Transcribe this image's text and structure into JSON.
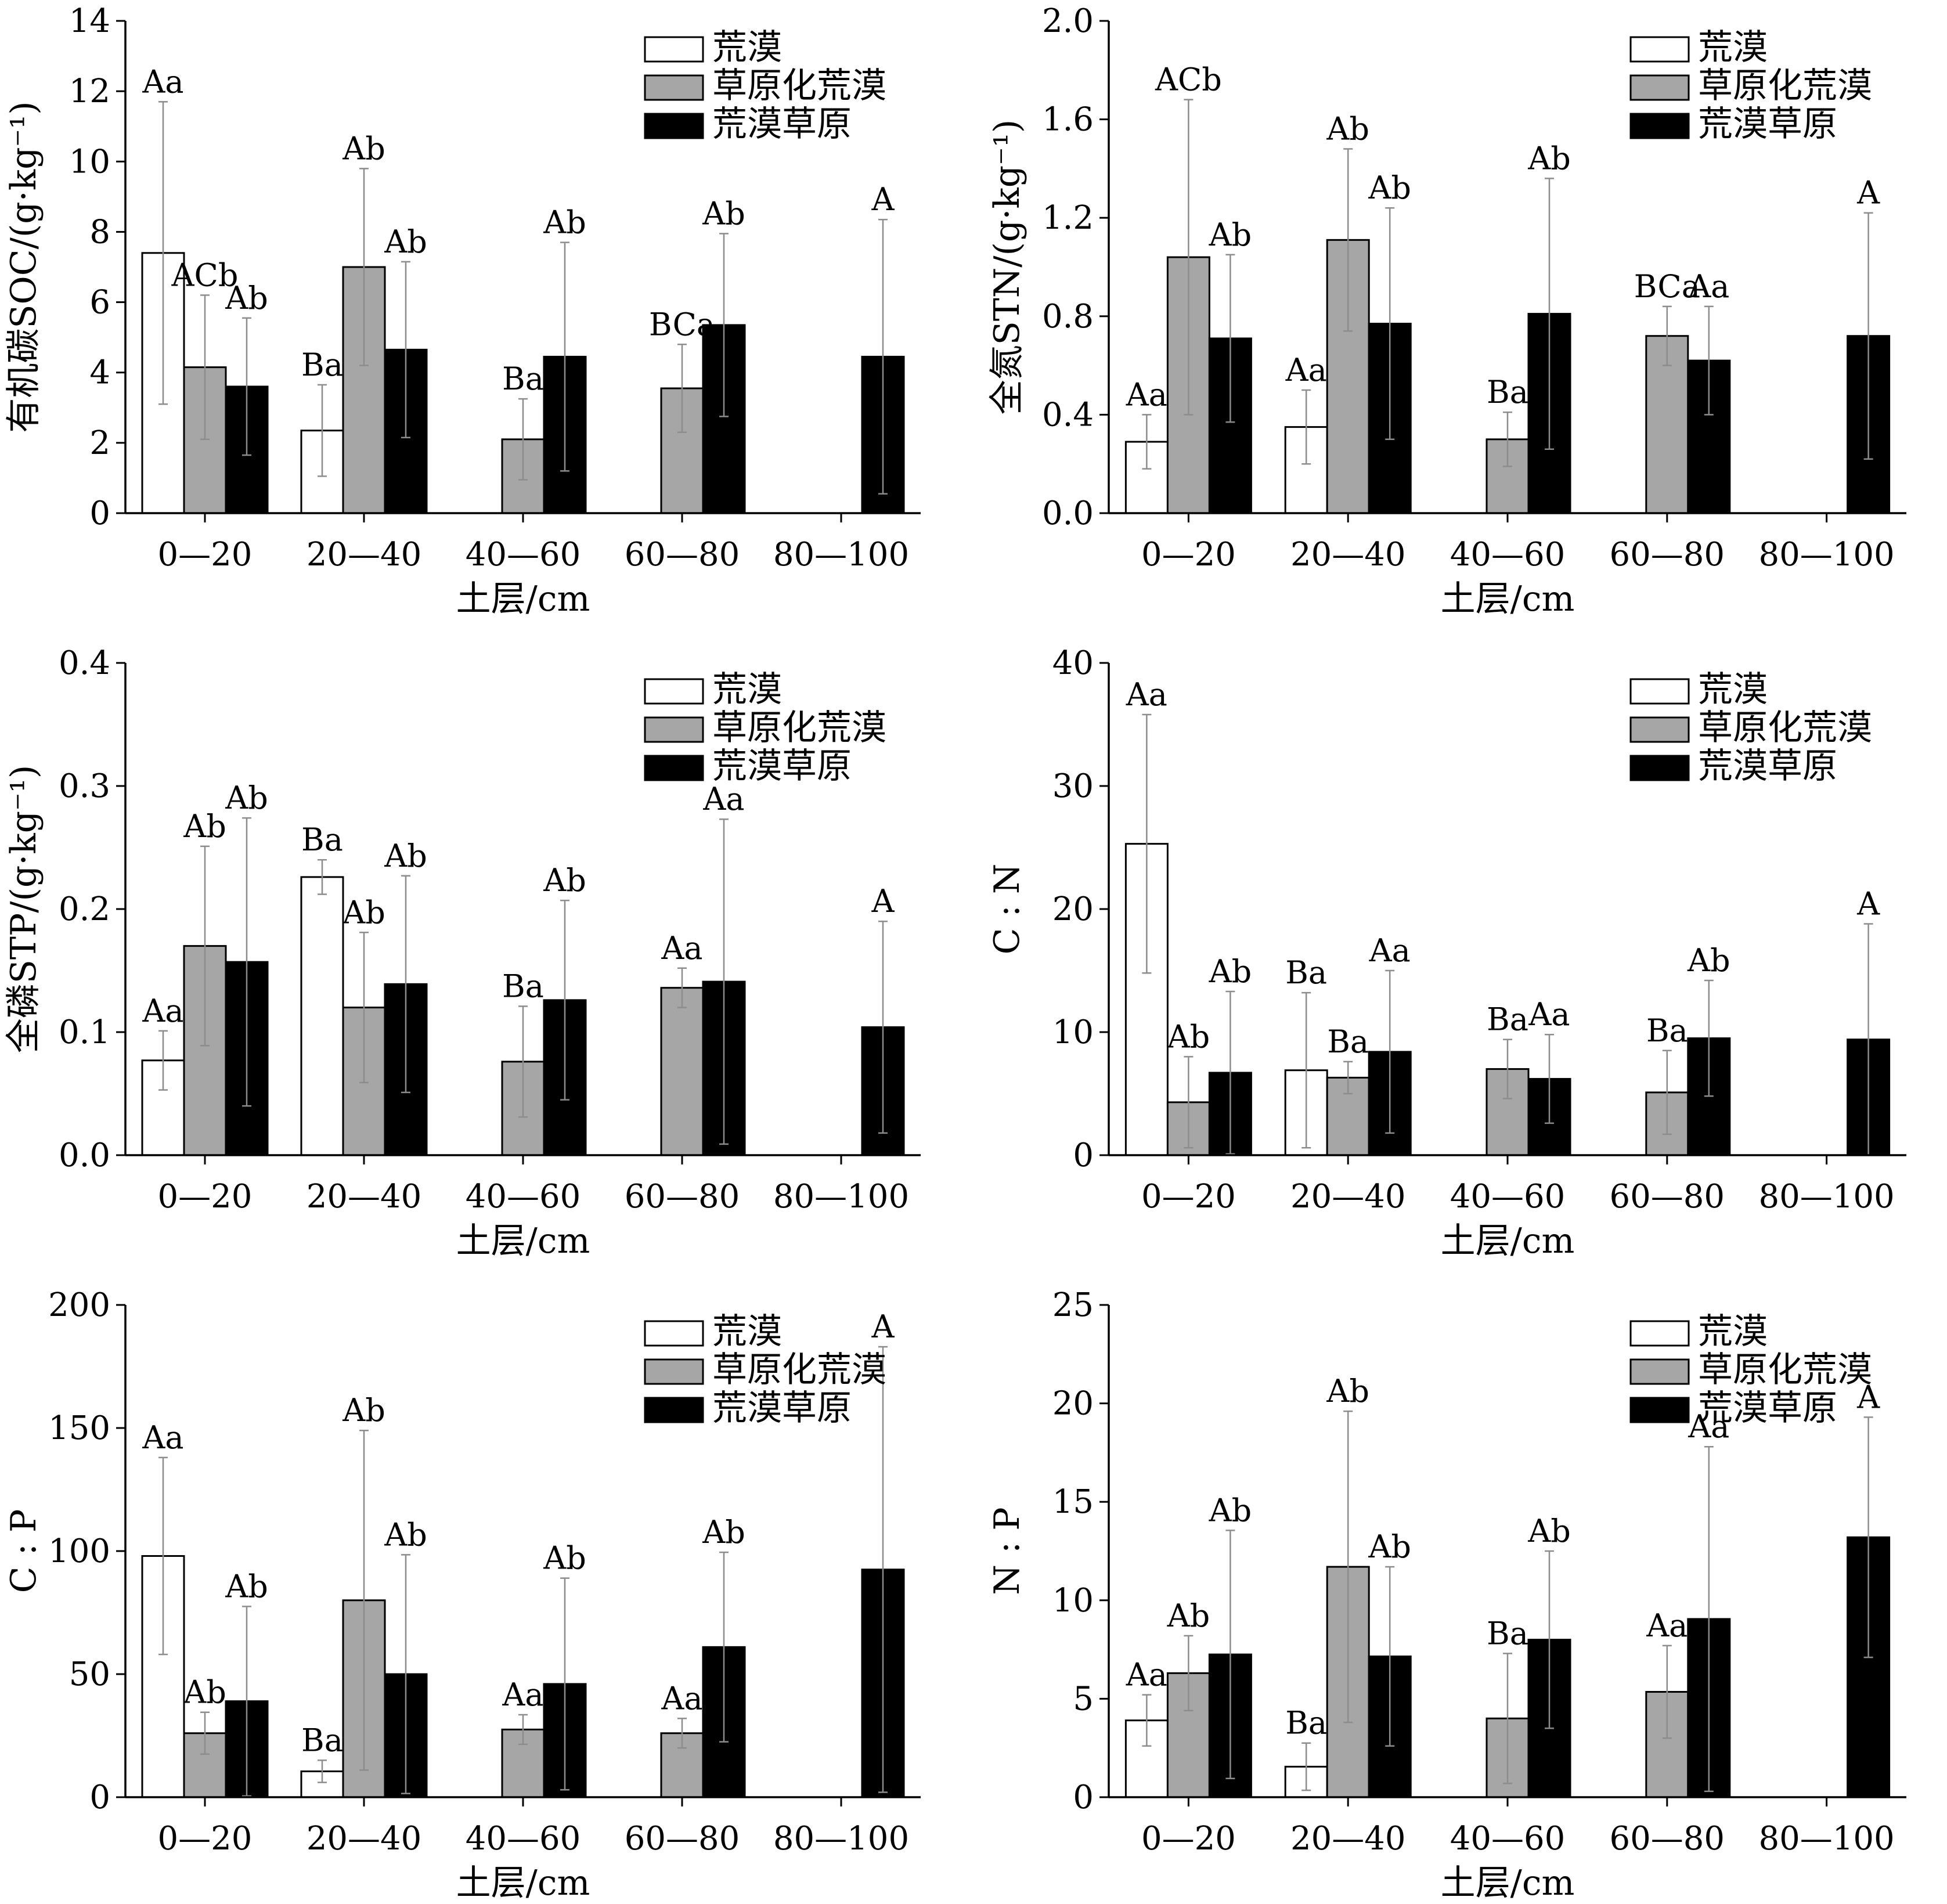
{
  "chart_data": [
    {
      "type": "bar",
      "ylabel": "有机碳SOC/(g·kg⁻¹)",
      "xlabel": "土层/cm",
      "ylim": [
        0,
        14
      ],
      "yticks": [
        "0",
        "2",
        "4",
        "6",
        "8",
        "10",
        "12",
        "14"
      ],
      "categories": [
        "0—20",
        "20—40",
        "40—60",
        "60—80",
        "80—100"
      ],
      "legend": [
        "荒漠",
        "草原化荒漠",
        "荒漠草原"
      ],
      "series": [
        {
          "name": "荒漠",
          "values": [
            7.4,
            2.35,
            null,
            null,
            null
          ],
          "err": [
            4.3,
            1.3,
            null,
            null,
            null
          ],
          "labels": [
            "Aa",
            "Ba",
            "",
            "",
            ""
          ]
        },
        {
          "name": "草原化荒漠",
          "values": [
            4.15,
            7.0,
            2.1,
            3.55,
            null
          ],
          "err": [
            2.05,
            2.8,
            1.15,
            1.25,
            null
          ],
          "labels": [
            "ACb",
            "Ab",
            "Ba",
            "BCa",
            ""
          ]
        },
        {
          "name": "荒漠草原",
          "values": [
            3.6,
            4.65,
            4.45,
            5.35,
            4.45
          ],
          "err": [
            1.95,
            2.5,
            3.25,
            2.6,
            3.9
          ],
          "labels": [
            "Ab",
            "Ab",
            "Ab",
            "Ab",
            "A"
          ]
        }
      ]
    },
    {
      "type": "bar",
      "ylabel": "全氮STN/(g·kg⁻¹)",
      "xlabel": "土层/cm",
      "ylim": [
        0,
        2.0
      ],
      "yticks": [
        "0.0",
        "0.4",
        "0.8",
        "1.2",
        "1.6",
        "2.0"
      ],
      "categories": [
        "0—20",
        "20—40",
        "40—60",
        "60—80",
        "80—100"
      ],
      "legend": [
        "荒漠",
        "草原化荒漠",
        "荒漠草原"
      ],
      "series": [
        {
          "name": "荒漠",
          "values": [
            0.29,
            0.35,
            null,
            null,
            null
          ],
          "err": [
            0.11,
            0.15,
            null,
            null,
            null
          ],
          "labels": [
            "Aa",
            "Aa",
            "",
            "",
            ""
          ]
        },
        {
          "name": "草原化荒漠",
          "values": [
            1.04,
            1.11,
            0.3,
            0.72,
            null
          ],
          "err": [
            0.64,
            0.37,
            0.11,
            0.12,
            null
          ],
          "labels": [
            "ACb",
            "Ab",
            "Ba",
            "BCa",
            ""
          ]
        },
        {
          "name": "荒漠草原",
          "values": [
            0.71,
            0.77,
            0.81,
            0.62,
            0.72
          ],
          "err": [
            0.34,
            0.47,
            0.55,
            0.22,
            0.5
          ],
          "labels": [
            "Ab",
            "Ab",
            "Ab",
            "Aa",
            "A"
          ]
        }
      ]
    },
    {
      "type": "bar",
      "ylabel": "全磷STP/(g·kg⁻¹)",
      "xlabel": "土层/cm",
      "ylim": [
        0,
        0.4
      ],
      "yticks": [
        "0.0",
        "0.1",
        "0.2",
        "0.3",
        "0.4"
      ],
      "categories": [
        "0—20",
        "20—40",
        "40—60",
        "60—80",
        "80—100"
      ],
      "legend": [
        "荒漠",
        "草原化荒漠",
        "荒漠草原"
      ],
      "series": [
        {
          "name": "荒漠",
          "values": [
            0.077,
            0.226,
            null,
            null,
            null
          ],
          "err": [
            0.024,
            0.014,
            null,
            null,
            null
          ],
          "labels": [
            "Aa",
            "Ba",
            "",
            "",
            ""
          ]
        },
        {
          "name": "草原化荒漠",
          "values": [
            0.17,
            0.12,
            0.076,
            0.136,
            null
          ],
          "err": [
            0.081,
            0.061,
            0.045,
            0.016,
            null
          ],
          "labels": [
            "Ab",
            "Ab",
            "Ba",
            "Aa",
            ""
          ]
        },
        {
          "name": "荒漠草原",
          "values": [
            0.157,
            0.139,
            0.126,
            0.141,
            0.104
          ],
          "err": [
            0.117,
            0.088,
            0.081,
            0.132,
            0.086
          ],
          "labels": [
            "Ab",
            "Ab",
            "Ab",
            "Aa",
            "A"
          ]
        }
      ]
    },
    {
      "type": "bar",
      "ylabel": "C : N",
      "xlabel": "土层/cm",
      "ylim": [
        0,
        40
      ],
      "yticks": [
        "0",
        "10",
        "20",
        "30",
        "40"
      ],
      "categories": [
        "0—20",
        "20—40",
        "40—60",
        "60—80",
        "80—100"
      ],
      "legend": [
        "荒漠",
        "草原化荒漠",
        "荒漠草原"
      ],
      "series": [
        {
          "name": "荒漠",
          "values": [
            25.3,
            6.9,
            null,
            null,
            null
          ],
          "err": [
            10.5,
            6.3,
            null,
            null,
            null
          ],
          "labels": [
            "Aa",
            "Ba",
            "",
            "",
            ""
          ]
        },
        {
          "name": "草原化荒漠",
          "values": [
            4.3,
            6.3,
            7.0,
            5.1,
            null
          ],
          "err": [
            3.7,
            1.3,
            2.4,
            3.4,
            null
          ],
          "labels": [
            "Ab",
            "Ba",
            "Ba",
            "Ba",
            ""
          ]
        },
        {
          "name": "荒漠草原",
          "values": [
            6.7,
            8.4,
            6.2,
            9.5,
            9.4
          ],
          "err": [
            6.6,
            6.6,
            3.6,
            4.7,
            9.4
          ],
          "labels": [
            "Ab",
            "Aa",
            "Aa",
            "Ab",
            "A"
          ]
        }
      ]
    },
    {
      "type": "bar",
      "ylabel": "C : P",
      "xlabel": "土层/cm",
      "ylim": [
        0,
        200
      ],
      "yticks": [
        "0",
        "50",
        "100",
        "150",
        "200"
      ],
      "categories": [
        "0—20",
        "20—40",
        "40—60",
        "60—80",
        "80—100"
      ],
      "legend": [
        "荒漠",
        "草原化荒漠",
        "荒漠草原"
      ],
      "series": [
        {
          "name": "荒漠",
          "values": [
            98,
            10.5,
            null,
            null,
            null
          ],
          "err": [
            40,
            4.5,
            null,
            null,
            null
          ],
          "labels": [
            "Aa",
            "Ba",
            "",
            "",
            ""
          ]
        },
        {
          "name": "草原化荒漠",
          "values": [
            26,
            80,
            27.5,
            26,
            null
          ],
          "err": [
            8.5,
            69,
            6,
            6,
            null
          ],
          "labels": [
            "Ab",
            "Ab",
            "Aa",
            "Aa",
            ""
          ]
        },
        {
          "name": "荒漠草原",
          "values": [
            39,
            50,
            46,
            61,
            92.5
          ],
          "err": [
            38.5,
            48.5,
            43,
            38.5,
            90.5
          ],
          "labels": [
            "Ab",
            "Ab",
            "Ab",
            "Ab",
            "A"
          ]
        }
      ]
    },
    {
      "type": "bar",
      "ylabel": "N : P",
      "xlabel": "土层/cm",
      "ylim": [
        0,
        25
      ],
      "yticks": [
        "0",
        "5",
        "10",
        "15",
        "20",
        "25"
      ],
      "categories": [
        "0—20",
        "20—40",
        "40—60",
        "60—80",
        "80—100"
      ],
      "legend": [
        "荒漠",
        "草原化荒漠",
        "荒漠草原"
      ],
      "series": [
        {
          "name": "荒漠",
          "values": [
            3.9,
            1.55,
            null,
            null,
            null
          ],
          "err": [
            1.3,
            1.2,
            null,
            null,
            null
          ],
          "labels": [
            "Aa",
            "Ba",
            "",
            "",
            ""
          ]
        },
        {
          "name": "草原化荒漠",
          "values": [
            6.3,
            11.7,
            4.0,
            5.35,
            null
          ],
          "err": [
            1.9,
            7.9,
            3.3,
            2.35,
            null
          ],
          "labels": [
            "Ab",
            "Ab",
            "Ba",
            "Aa",
            ""
          ]
        },
        {
          "name": "荒漠草原",
          "values": [
            7.25,
            7.15,
            8.0,
            9.05,
            13.2
          ],
          "err": [
            6.3,
            4.55,
            4.5,
            8.75,
            6.1
          ],
          "labels": [
            "Ab",
            "Ab",
            "Ab",
            "Aa",
            "A"
          ]
        }
      ]
    }
  ],
  "colors": {
    "fills": [
      "#ffffff",
      "#a6a6a6",
      "#000000"
    ],
    "axis": "#000000",
    "errorbar": "#8c8c8c"
  }
}
